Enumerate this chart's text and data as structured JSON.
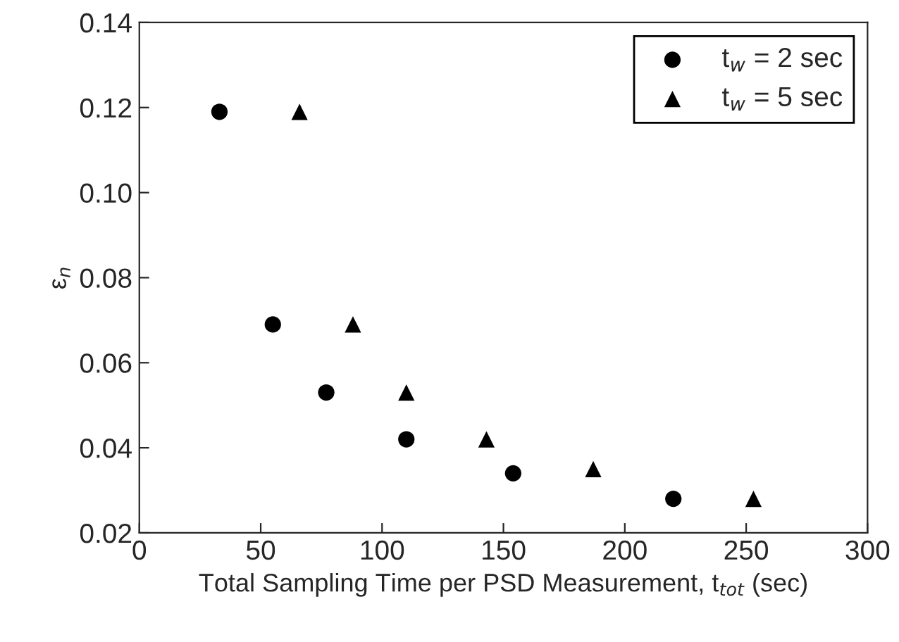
{
  "chart_data": {
    "type": "scatter",
    "xlabel": "Total Sampling Time per PSD Measurement, t$_{tot}$ (sec)",
    "ylabel": "ε$_{n}$",
    "series": [
      {
        "name": "t$_{w}$ = 2 sec",
        "color": "#000000",
        "marker": "circle",
        "x": [
          33,
          55,
          77,
          110,
          154,
          220
        ],
        "values": [
          0.119,
          0.069,
          0.053,
          0.042,
          0.034,
          0.028
        ]
      },
      {
        "name": "t$_{w}$ = 5 sec",
        "color": "#000000",
        "marker": "triangle",
        "x": [
          66,
          88,
          110,
          143,
          187,
          253
        ],
        "values": [
          0.119,
          0.069,
          0.053,
          0.042,
          0.035,
          0.028
        ]
      }
    ],
    "xlim": [
      0,
      300
    ],
    "xticks": [
      0,
      50,
      100,
      150,
      200,
      250,
      300
    ],
    "ylim": [
      0.02,
      0.14
    ],
    "yticks": [
      {
        "value": 0.02,
        "label": "0.02"
      },
      {
        "value": 0.04,
        "label": "0.04"
      },
      {
        "value": 0.06,
        "label": "0.06"
      },
      {
        "value": 0.08,
        "label": "0.08"
      },
      {
        "value": 0.1,
        "label": "0.10"
      },
      {
        "value": 0.12,
        "label": "0.12"
      },
      {
        "value": 0.14,
        "label": "0.14"
      }
    ],
    "grid": false,
    "legend": "top right"
  }
}
